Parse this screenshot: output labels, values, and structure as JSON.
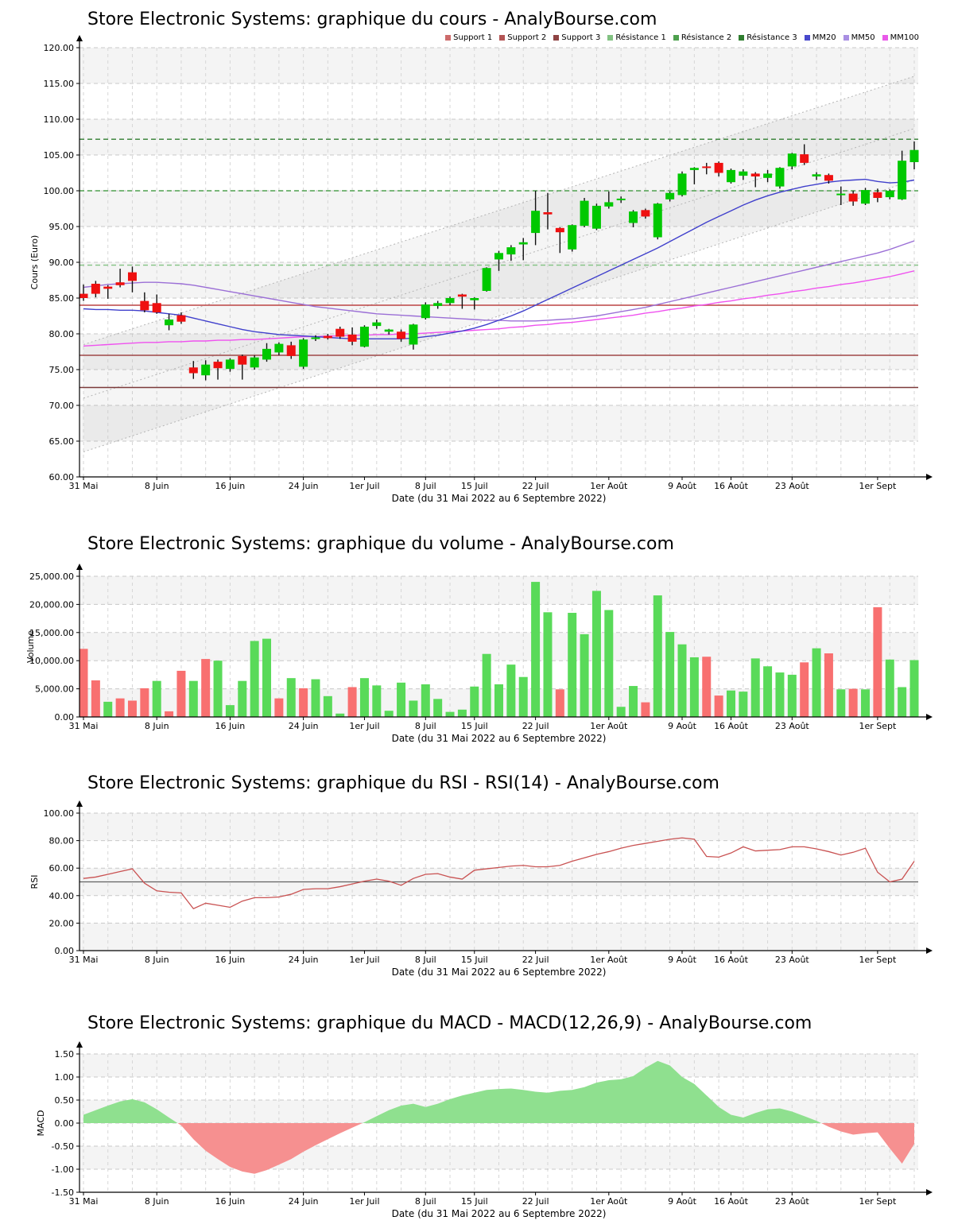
{
  "watermark": "AnalyBourse.com",
  "instrument": "Store Electronic Systems",
  "chart_data": [
    {
      "id": "price",
      "type": "candlestick",
      "title": "Store Electronic Systems: graphique du cours - AnalyBourse.com",
      "ylabel": "Cours (Euro)",
      "xlabel": "Date (du 31 Mai 2022 au 6 Septembre 2022)",
      "ylim": [
        60,
        120
      ],
      "yticks": [
        "120.00",
        "115.00",
        "110.00",
        "105.00",
        "100.00",
        "95.00",
        "90.00",
        "85.00",
        "80.00",
        "75.00",
        "70.00",
        "65.00",
        "60.00"
      ],
      "ytick_values": [
        120,
        115,
        110,
        105,
        100,
        95,
        90,
        85,
        80,
        75,
        70,
        65,
        60
      ],
      "x_tick_labels": [
        "31 Mai",
        "8 Juin",
        "16 Juin",
        "24 Juin",
        "1er Juil",
        "8 Juil",
        "15 Juil",
        "22 Juil",
        "1er Août",
        "9 Août",
        "16 Août",
        "23 Août",
        "1er Sept"
      ],
      "x_tick_indices": [
        0,
        6,
        12,
        18,
        23,
        28,
        32,
        37,
        43,
        49,
        53,
        58,
        65
      ],
      "dates": [
        "31/05",
        "01/06",
        "02/06",
        "03/06",
        "06/06",
        "07/06",
        "08/06",
        "09/06",
        "10/06",
        "13/06",
        "14/06",
        "15/06",
        "16/06",
        "17/06",
        "20/06",
        "21/06",
        "22/06",
        "23/06",
        "24/06",
        "27/06",
        "28/06",
        "29/06",
        "30/06",
        "01/07",
        "04/07",
        "05/07",
        "06/07",
        "07/07",
        "08/07",
        "11/07",
        "12/07",
        "13/07",
        "15/07",
        "18/07",
        "19/07",
        "20/07",
        "21/07",
        "22/07",
        "25/07",
        "26/07",
        "27/07",
        "28/07",
        "29/07",
        "01/08",
        "02/08",
        "03/08",
        "04/08",
        "05/08",
        "08/08",
        "09/08",
        "10/08",
        "11/08",
        "12/08",
        "16/08",
        "17/08",
        "18/08",
        "19/08",
        "22/08",
        "23/08",
        "24/08",
        "25/08",
        "26/08",
        "29/08",
        "30/08",
        "31/08",
        "01/09",
        "02/09",
        "05/09",
        "06/09"
      ],
      "ohlc": [
        [
          85.6,
          86.9,
          84.6,
          85.0
        ],
        [
          87.0,
          87.4,
          85.1,
          85.6
        ],
        [
          86.6,
          86.8,
          84.9,
          86.3
        ],
        [
          87.2,
          89.1,
          86.5,
          86.8
        ],
        [
          88.6,
          89.4,
          85.8,
          87.4
        ],
        [
          84.6,
          85.8,
          83.0,
          83.3
        ],
        [
          84.3,
          85.5,
          82.8,
          83.0
        ],
        [
          81.2,
          82.8,
          80.5,
          82.0
        ],
        [
          82.6,
          83.0,
          81.4,
          81.7
        ],
        [
          75.3,
          76.2,
          73.7,
          74.5
        ],
        [
          74.2,
          76.3,
          73.5,
          75.7
        ],
        [
          76.1,
          76.4,
          73.6,
          75.2
        ],
        [
          75.1,
          76.6,
          74.7,
          76.4
        ],
        [
          76.9,
          77.1,
          73.6,
          75.7
        ],
        [
          75.3,
          77.0,
          75.0,
          76.7
        ],
        [
          76.4,
          78.7,
          76.1,
          77.9
        ],
        [
          77.4,
          78.8,
          77.0,
          78.6
        ],
        [
          78.4,
          78.9,
          76.5,
          76.9
        ],
        [
          75.4,
          79.4,
          75.1,
          79.2
        ],
        [
          79.3,
          79.8,
          79.0,
          79.5
        ],
        [
          79.7,
          80.0,
          79.2,
          79.4
        ],
        [
          80.7,
          81.0,
          79.3,
          79.6
        ],
        [
          79.9,
          80.9,
          78.4,
          78.9
        ],
        [
          78.2,
          81.2,
          78.1,
          81.0
        ],
        [
          81.1,
          82.0,
          80.7,
          81.6
        ],
        [
          80.3,
          80.7,
          79.9,
          80.6
        ],
        [
          80.3,
          80.6,
          78.9,
          79.3
        ],
        [
          78.5,
          81.4,
          77.8,
          81.3
        ],
        [
          82.2,
          84.4,
          82.0,
          84.1
        ],
        [
          83.9,
          84.6,
          83.5,
          84.3
        ],
        [
          84.3,
          85.2,
          84.0,
          85.0
        ],
        [
          85.5,
          85.6,
          83.5,
          85.2
        ],
        [
          84.7,
          85.1,
          83.4,
          85.0
        ],
        [
          86.0,
          89.3,
          85.9,
          89.2
        ],
        [
          90.4,
          91.6,
          88.8,
          91.3
        ],
        [
          91.1,
          92.4,
          90.2,
          92.1
        ],
        [
          92.5,
          93.4,
          90.3,
          92.8
        ],
        [
          94.1,
          100.0,
          92.4,
          97.2
        ],
        [
          97.0,
          99.7,
          94.6,
          96.7
        ],
        [
          94.8,
          94.9,
          91.3,
          94.2
        ],
        [
          91.8,
          95.3,
          91.5,
          95.2
        ],
        [
          95.1,
          99.0,
          94.9,
          98.6
        ],
        [
          94.7,
          98.2,
          94.5,
          97.9
        ],
        [
          97.8,
          99.9,
          97.5,
          98.4
        ],
        [
          98.7,
          99.2,
          98.3,
          98.9
        ],
        [
          95.5,
          97.3,
          94.9,
          97.1
        ],
        [
          97.3,
          97.5,
          96.1,
          96.4
        ],
        [
          93.5,
          98.3,
          93.2,
          98.2
        ],
        [
          98.8,
          99.9,
          98.5,
          99.7
        ],
        [
          99.4,
          102.7,
          99.2,
          102.4
        ],
        [
          102.9,
          103.3,
          100.9,
          103.2
        ],
        [
          103.4,
          103.9,
          102.3,
          103.2
        ],
        [
          103.9,
          104.1,
          102.0,
          102.5
        ],
        [
          101.2,
          103.1,
          101.0,
          102.9
        ],
        [
          102.1,
          103.0,
          101.5,
          102.7
        ],
        [
          102.4,
          102.6,
          100.5,
          102.0
        ],
        [
          101.8,
          102.9,
          101.2,
          102.4
        ],
        [
          100.6,
          103.3,
          100.3,
          103.2
        ],
        [
          103.4,
          105.3,
          103.0,
          105.2
        ],
        [
          105.1,
          106.5,
          103.6,
          103.9
        ],
        [
          102.0,
          102.6,
          101.5,
          102.3
        ],
        [
          102.2,
          102.4,
          101.0,
          101.4
        ],
        [
          99.5,
          100.6,
          98.0,
          99.6
        ],
        [
          99.6,
          100.0,
          97.9,
          98.5
        ],
        [
          98.2,
          100.4,
          98.0,
          100.1
        ],
        [
          99.8,
          100.3,
          98.4,
          99.0
        ],
        [
          99.1,
          100.2,
          98.8,
          100.0
        ],
        [
          98.8,
          105.6,
          98.7,
          104.2
        ],
        [
          104.0,
          106.9,
          103.0,
          105.7
        ]
      ],
      "legend": [
        {
          "label": "Support 1",
          "color": "#cd6b6b"
        },
        {
          "label": "Support 2",
          "color": "#b35454"
        },
        {
          "label": "Support 3",
          "color": "#8f4343"
        },
        {
          "label": "Résistance 1",
          "color": "#82c282"
        },
        {
          "label": "Résistance 2",
          "color": "#4ea04e"
        },
        {
          "label": "Résistance 3",
          "color": "#2f7d2f"
        },
        {
          "label": "MM20",
          "color": "#4848cc"
        },
        {
          "label": "MM50",
          "color": "#a98fe3"
        },
        {
          "label": "MM100",
          "color": "#e959e9"
        }
      ],
      "support_levels": [
        {
          "label": "Support 1",
          "value": 84.0,
          "color": "#bb4444"
        },
        {
          "label": "Support 2",
          "value": 77.0,
          "color": "#a04848"
        },
        {
          "label": "Support 3",
          "value": 72.5,
          "color": "#7c3a3a"
        }
      ],
      "resistance_levels": [
        {
          "label": "Résistance 1",
          "value": 89.6,
          "color": "#82c282"
        },
        {
          "label": "Résistance 2",
          "value": 100.0,
          "color": "#4ea04e"
        },
        {
          "label": "Résistance 3",
          "value": 107.2,
          "color": "#2f7d2f"
        }
      ],
      "mm20": [
        83.5,
        83.4,
        83.4,
        83.3,
        83.3,
        83.2,
        83.0,
        82.8,
        82.6,
        82.2,
        81.8,
        81.4,
        81.0,
        80.6,
        80.3,
        80.1,
        79.9,
        79.8,
        79.7,
        79.6,
        79.5,
        79.4,
        79.3,
        79.3,
        79.3,
        79.3,
        79.3,
        79.4,
        79.6,
        79.8,
        80.1,
        80.4,
        80.8,
        81.3,
        81.9,
        82.5,
        83.2,
        84.0,
        84.8,
        85.6,
        86.4,
        87.2,
        88.0,
        88.8,
        89.6,
        90.4,
        91.2,
        92.0,
        92.9,
        93.8,
        94.7,
        95.6,
        96.4,
        97.2,
        98.0,
        98.7,
        99.3,
        99.8,
        100.2,
        100.6,
        100.9,
        101.2,
        101.4,
        101.5,
        101.6,
        101.3,
        101.1,
        101.2,
        101.5
      ],
      "mm50": [
        86.5,
        86.7,
        86.9,
        87.0,
        87.1,
        87.2,
        87.2,
        87.1,
        87.0,
        86.8,
        86.5,
        86.2,
        85.9,
        85.6,
        85.3,
        85.0,
        84.7,
        84.4,
        84.1,
        83.8,
        83.6,
        83.4,
        83.2,
        83.0,
        82.8,
        82.7,
        82.6,
        82.5,
        82.4,
        82.3,
        82.2,
        82.1,
        82.0,
        81.9,
        81.9,
        81.8,
        81.8,
        81.8,
        81.9,
        82.0,
        82.1,
        82.3,
        82.5,
        82.8,
        83.1,
        83.4,
        83.7,
        84.1,
        84.5,
        84.9,
        85.3,
        85.7,
        86.1,
        86.5,
        86.9,
        87.3,
        87.7,
        88.1,
        88.5,
        88.9,
        89.3,
        89.7,
        90.1,
        90.5,
        90.9,
        91.3,
        91.8,
        92.4,
        93.0
      ],
      "mm100": [
        78.3,
        78.4,
        78.5,
        78.6,
        78.7,
        78.8,
        78.8,
        78.9,
        78.9,
        79.0,
        79.0,
        79.1,
        79.1,
        79.2,
        79.2,
        79.3,
        79.4,
        79.5,
        79.6,
        79.6,
        79.7,
        79.7,
        79.8,
        79.8,
        79.9,
        79.9,
        80.0,
        80.0,
        80.1,
        80.2,
        80.3,
        80.4,
        80.5,
        80.6,
        80.7,
        80.9,
        81.0,
        81.2,
        81.3,
        81.5,
        81.6,
        81.8,
        82.0,
        82.2,
        82.4,
        82.6,
        82.9,
        83.1,
        83.4,
        83.6,
        83.9,
        84.1,
        84.4,
        84.6,
        84.9,
        85.1,
        85.4,
        85.6,
        85.9,
        86.1,
        86.4,
        86.6,
        86.9,
        87.1,
        87.4,
        87.7,
        88.0,
        88.4,
        88.8
      ],
      "channel": {
        "lower": [
          63.5,
          101.5
        ],
        "mid": [
          71.0,
          108.7
        ],
        "upper": [
          78.5,
          116.0
        ]
      },
      "colors": {
        "up": "#00c800",
        "down": "#ef1010",
        "wick": "#111111"
      }
    },
    {
      "id": "volume",
      "type": "bar",
      "title": "Store Electronic Systems: graphique du volume - AnalyBourse.com",
      "ylabel": "Volume",
      "xlabel": "Date (du 31 Mai 2022 au 6 Septembre 2022)",
      "ylim": [
        0,
        25000
      ],
      "yticks": [
        "25,000.00",
        "20,000.00",
        "15,000.00",
        "10,000.00",
        "5,000.00",
        "0.00"
      ],
      "ytick_values": [
        25000,
        20000,
        15000,
        10000,
        5000,
        0
      ],
      "values": [
        12100,
        6500,
        2700,
        3300,
        2900,
        5100,
        6400,
        1000,
        8200,
        6400,
        10300,
        10000,
        2100,
        6400,
        13500,
        13900,
        3300,
        6900,
        5100,
        6700,
        3700,
        600,
        5300,
        6900,
        5600,
        1100,
        6100,
        2900,
        5800,
        3200,
        900,
        1300,
        5400,
        11200,
        5800,
        9300,
        7100,
        24000,
        18600,
        4900,
        18500,
        14700,
        22400,
        19000,
        1800,
        5500,
        2600,
        21600,
        15100,
        12900,
        10600,
        10700,
        3800,
        4700,
        4500,
        10400,
        9000,
        7900,
        7500,
        9700,
        12200,
        11300,
        4900,
        5000,
        4900,
        19500,
        10200,
        5300,
        10100
      ],
      "bar_colors": [
        "r",
        "r",
        "g",
        "r",
        "r",
        "r",
        "g",
        "r",
        "r",
        "g",
        "r",
        "g",
        "g",
        "g",
        "g",
        "g",
        "r",
        "g",
        "r",
        "g",
        "g",
        "g",
        "r",
        "g",
        "g",
        "g",
        "g",
        "g",
        "g",
        "g",
        "g",
        "g",
        "g",
        "g",
        "g",
        "g",
        "g",
        "g",
        "g",
        "r",
        "g",
        "g",
        "g",
        "g",
        "g",
        "g",
        "r",
        "g",
        "g",
        "g",
        "g",
        "r",
        "r",
        "g",
        "g",
        "g",
        "g",
        "g",
        "g",
        "r",
        "g",
        "r",
        "g",
        "r",
        "g",
        "r",
        "g",
        "g",
        "g"
      ],
      "colors": {
        "up": "#59da59",
        "down": "#f87070"
      }
    },
    {
      "id": "rsi",
      "type": "line",
      "title": "Store Electronic Systems: graphique du RSI - RSI(14) - AnalyBourse.com",
      "ylabel": "RSI",
      "xlabel": "Date (du 31 Mai 2022 au 6 Septembre 2022)",
      "ylim": [
        0,
        100
      ],
      "yticks": [
        "100.00",
        "80.00",
        "60.00",
        "40.00",
        "20.00",
        "0.00"
      ],
      "ytick_values": [
        100,
        80,
        60,
        40,
        20,
        0
      ],
      "midline": 50,
      "line_color": "#c95252",
      "values": [
        52.5,
        53.5,
        55.5,
        57.5,
        59.5,
        49.0,
        43.5,
        42.5,
        42.0,
        30.5,
        34.5,
        33.0,
        31.5,
        36.0,
        38.5,
        38.5,
        39.0,
        41.0,
        44.5,
        45.0,
        45.0,
        46.5,
        48.5,
        50.5,
        52.0,
        50.5,
        47.5,
        52.5,
        55.5,
        56.0,
        53.5,
        52.0,
        58.5,
        59.5,
        60.5,
        61.5,
        62.0,
        61.0,
        61.0,
        62.0,
        65.0,
        67.5,
        70.0,
        72.0,
        74.5,
        76.5,
        78.0,
        79.5,
        81.0,
        82.0,
        81.0,
        68.5,
        68.0,
        71.0,
        75.5,
        72.5,
        73.0,
        73.5,
        75.5,
        75.5,
        74.0,
        72.0,
        69.5,
        71.5,
        74.5,
        57.0,
        50.0,
        52.0,
        65.0
      ]
    },
    {
      "id": "macd",
      "type": "area",
      "title": "Store Electronic Systems: graphique du MACD - MACD(12,26,9) - AnalyBourse.com",
      "ylabel": "MACD",
      "xlabel": "Date (du 31 Mai 2022 au 6 Septembre 2022)",
      "ylim": [
        -1.5,
        1.5
      ],
      "yticks": [
        "1.50",
        "1.00",
        "0.50",
        "0.00",
        "-0.50",
        "-1.00",
        "-1.50"
      ],
      "ytick_values": [
        1.5,
        1.0,
        0.5,
        0,
        -0.5,
        -1.0,
        -1.5
      ],
      "colors": {
        "positive": "#8fe08f",
        "negative": "#f69090"
      },
      "values": [
        0.18,
        0.28,
        0.38,
        0.47,
        0.52,
        0.45,
        0.3,
        0.12,
        -0.05,
        -0.35,
        -0.6,
        -0.78,
        -0.95,
        -1.05,
        -1.1,
        -1.02,
        -0.9,
        -0.78,
        -0.62,
        -0.48,
        -0.35,
        -0.22,
        -0.1,
        0.02,
        0.15,
        0.28,
        0.38,
        0.42,
        0.35,
        0.42,
        0.52,
        0.6,
        0.66,
        0.72,
        0.74,
        0.75,
        0.72,
        0.68,
        0.66,
        0.7,
        0.72,
        0.78,
        0.88,
        0.93,
        0.95,
        1.02,
        1.2,
        1.35,
        1.25,
        1.0,
        0.85,
        0.6,
        0.35,
        0.18,
        0.12,
        0.22,
        0.3,
        0.32,
        0.25,
        0.15,
        0.05,
        -0.08,
        -0.18,
        -0.25,
        -0.22,
        -0.2,
        -0.55,
        -0.88,
        -0.45
      ]
    }
  ]
}
